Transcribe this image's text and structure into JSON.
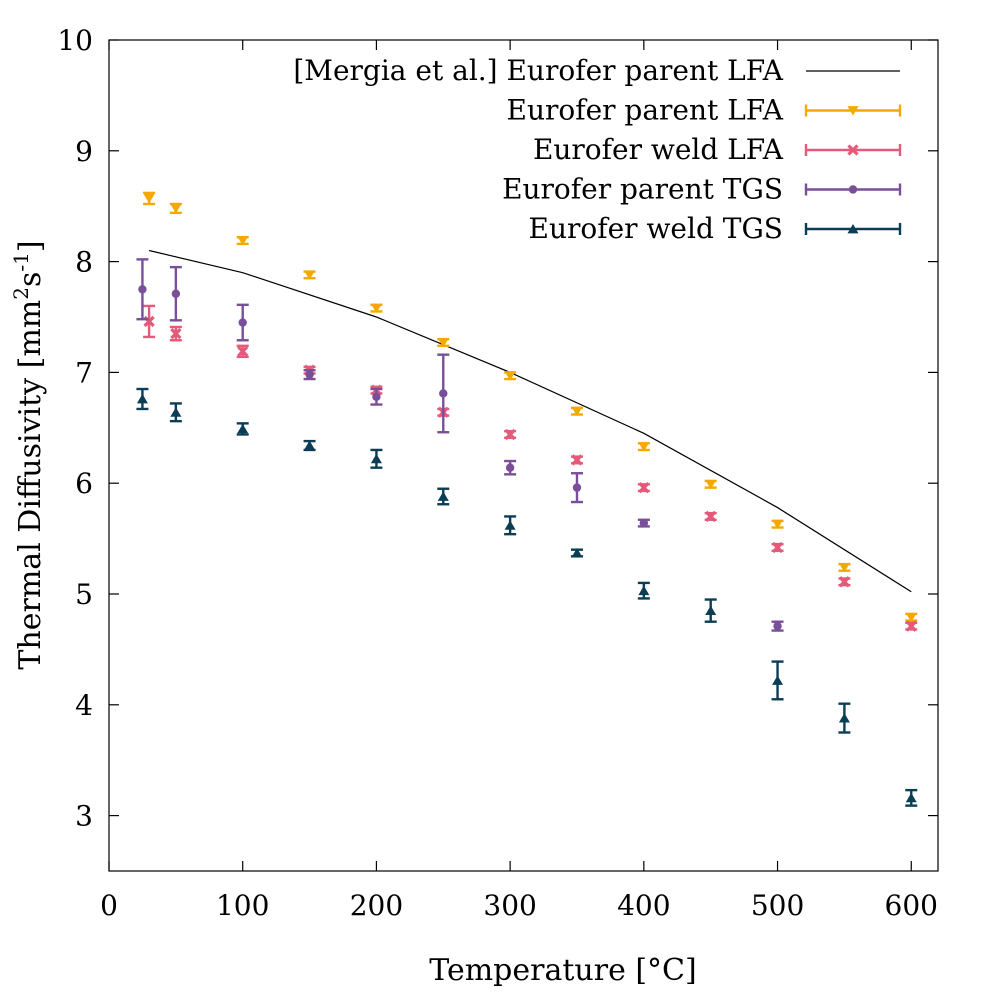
{
  "chart_data": {
    "type": "scatter",
    "xlabel": "Temperature [°C]",
    "ylabel_main": "Thermal Diffusivity [mm",
    "ylabel_sup1": "2",
    "ylabel_mid": "s",
    "ylabel_sup2": "-1",
    "ylabel_end": "]",
    "xlim": [
      0,
      620
    ],
    "ylim": [
      2.5,
      10
    ],
    "x_ticks": [
      0,
      100,
      200,
      300,
      400,
      500,
      600
    ],
    "y_ticks": [
      3,
      4,
      5,
      6,
      7,
      8,
      9,
      10
    ],
    "grid": false,
    "legend_position": "top-right",
    "series": [
      {
        "name": "[Mergia et al.] Eurofer parent LFA",
        "kind": "line",
        "color": "#000000",
        "x": [
          30,
          100,
          200,
          300,
          400,
          500,
          600
        ],
        "y": [
          8.1,
          7.9,
          7.5,
          7.0,
          6.45,
          5.78,
          5.02
        ]
      },
      {
        "name": "Eurofer parent LFA",
        "kind": "points",
        "marker": "triangle-down",
        "color": "#f5a800",
        "x": [
          30,
          50,
          100,
          150,
          200,
          250,
          300,
          350,
          400,
          450,
          500,
          550,
          600
        ],
        "y": [
          8.57,
          8.48,
          8.19,
          7.88,
          7.58,
          7.27,
          6.97,
          6.65,
          6.33,
          5.99,
          5.63,
          5.24,
          4.79
        ],
        "err": [
          0.05,
          0.04,
          0.03,
          0.03,
          0.03,
          0.03,
          0.03,
          0.03,
          0.03,
          0.03,
          0.03,
          0.03,
          0.03
        ]
      },
      {
        "name": "Eurofer weld LFA",
        "kind": "points",
        "marker": "x",
        "color": "#e45a7a",
        "x": [
          30,
          50,
          100,
          150,
          200,
          250,
          300,
          350,
          400,
          450,
          500,
          550,
          600
        ],
        "y": [
          7.46,
          7.35,
          7.19,
          7.02,
          6.84,
          6.64,
          6.44,
          6.21,
          5.96,
          5.7,
          5.42,
          5.11,
          4.71
        ],
        "err": [
          0.14,
          0.06,
          0.05,
          0.03,
          0.03,
          0.03,
          0.03,
          0.03,
          0.03,
          0.03,
          0.03,
          0.03,
          0.03
        ]
      },
      {
        "name": "Eurofer parent TGS",
        "kind": "points",
        "marker": "circle",
        "color": "#7a4f9a",
        "x": [
          25,
          50,
          100,
          150,
          200,
          250,
          300,
          350,
          400,
          500
        ],
        "y": [
          7.75,
          7.71,
          7.45,
          6.98,
          6.78,
          6.81,
          6.14,
          5.96,
          5.64,
          4.71
        ],
        "err": [
          0.27,
          0.24,
          0.16,
          0.04,
          0.07,
          0.35,
          0.06,
          0.13,
          0.03,
          0.04
        ]
      },
      {
        "name": "Eurofer weld TGS",
        "kind": "points",
        "marker": "triangle-up",
        "color": "#0b3d55",
        "x": [
          25,
          50,
          100,
          150,
          200,
          250,
          300,
          350,
          400,
          450,
          500,
          550,
          600
        ],
        "y": [
          6.76,
          6.64,
          6.49,
          6.34,
          6.22,
          5.88,
          5.62,
          5.37,
          5.03,
          4.85,
          4.22,
          3.88,
          3.16
        ],
        "err": [
          0.09,
          0.08,
          0.05,
          0.04,
          0.08,
          0.07,
          0.08,
          0.03,
          0.07,
          0.1,
          0.17,
          0.13,
          0.07
        ]
      }
    ]
  }
}
